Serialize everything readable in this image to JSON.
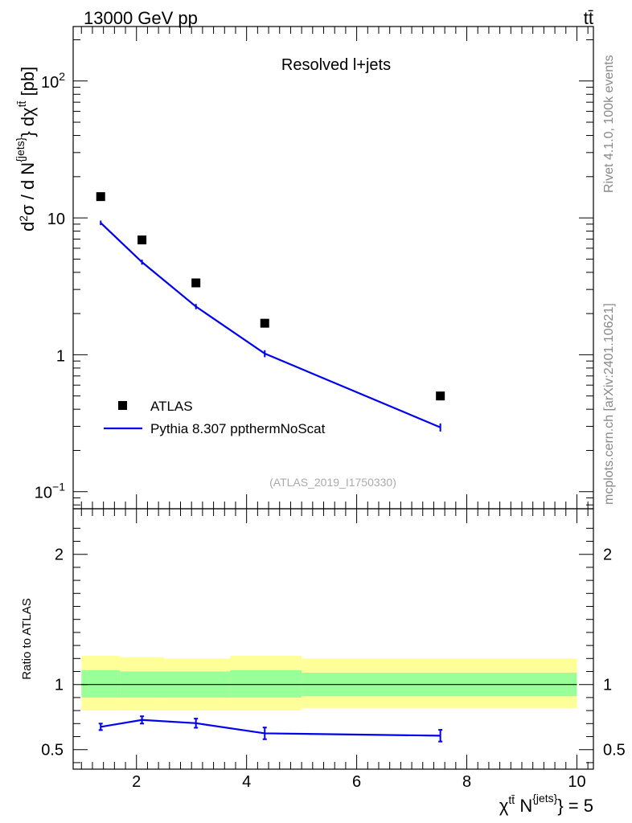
{
  "header": {
    "left_label": "13000 GeV pp",
    "right_label": "tt̄"
  },
  "side_labels": {
    "rivet": "Rivet 4.1.0,  100k events",
    "mcplots": "mcplots.cern.ch [arXiv:2401.10621]"
  },
  "chart_data": [
    {
      "type": "scatter",
      "panel": "main",
      "title": "Resolved l+jets",
      "analysis_tag": "(ATLAS_2019_I1750330)",
      "ylabel": {
        "prefix": "d",
        "sup1": "2",
        "mid": "σ /  d N",
        "sup2": "{jets}",
        "mid2": "} dχ",
        "sup3": "tt̄",
        "unit": " [pb]"
      },
      "yscale": "log",
      "ylim": [
        0.075,
        250
      ],
      "xlim": [
        0.85,
        10.3
      ],
      "yticks": [
        {
          "value": 0.1,
          "base": "10",
          "exp": "−1"
        },
        {
          "value": 1,
          "base": "1",
          "exp": ""
        },
        {
          "value": 10,
          "base": "10",
          "exp": ""
        },
        {
          "value": 100,
          "base": "10",
          "exp": "2"
        }
      ],
      "series": [
        {
          "name": "ATLAS",
          "style": "markers",
          "color": "#000000",
          "x": [
            1.35,
            2.1,
            3.08,
            4.33,
            7.52
          ],
          "y": [
            14.3,
            6.9,
            3.35,
            1.7,
            0.5
          ]
        },
        {
          "name": "Pythia 8.307 ppthermNoScat",
          "style": "line",
          "color": "#0000ee",
          "x": [
            1.35,
            2.1,
            3.08,
            4.33,
            7.52
          ],
          "y": [
            9.2,
            4.75,
            2.25,
            1.02,
            0.295
          ],
          "yerr": [
            0.35,
            0.2,
            0.1,
            0.06,
            0.02
          ]
        }
      ],
      "legend": "bottom-left"
    },
    {
      "type": "line",
      "panel": "ratio",
      "ylabel": "Ratio to ATLAS",
      "ylim": [
        0.35,
        2.35
      ],
      "xlim": [
        0.85,
        10.3
      ],
      "yticks": [
        {
          "value": 0.5,
          "label": "0.5"
        },
        {
          "value": 1,
          "label": "1"
        },
        {
          "value": 2,
          "label": "2"
        }
      ],
      "xticks": [
        {
          "value": 2,
          "label": "2"
        },
        {
          "value": 4,
          "label": "4"
        },
        {
          "value": 6,
          "label": "6"
        },
        {
          "value": 8,
          "label": "8"
        },
        {
          "value": 10,
          "label": "10"
        }
      ],
      "xlabel": {
        "chi": "χ",
        "sup1": "tt̄",
        "n": " N",
        "sup2": "{jets}",
        "tail": "} = 5"
      },
      "bands": [
        {
          "x0": 1.0,
          "x1": 1.7,
          "yellow": [
            0.8,
            1.22
          ],
          "green": [
            0.9,
            1.11
          ]
        },
        {
          "x0": 1.7,
          "x1": 2.5,
          "yellow": [
            0.8,
            1.21
          ],
          "green": [
            0.9,
            1.1
          ]
        },
        {
          "x0": 2.5,
          "x1": 3.7,
          "yellow": [
            0.8,
            1.2
          ],
          "green": [
            0.9,
            1.1
          ]
        },
        {
          "x0": 3.7,
          "x1": 5.0,
          "yellow": [
            0.8,
            1.22
          ],
          "green": [
            0.9,
            1.11
          ]
        },
        {
          "x0": 5.0,
          "x1": 10.0,
          "yellow": [
            0.82,
            1.2
          ],
          "green": [
            0.91,
            1.09
          ]
        }
      ],
      "series": [
        {
          "name": "Pythia 8.307 ppthermNoScat / ATLAS",
          "color": "#0000ee",
          "x": [
            1.35,
            2.1,
            3.08,
            4.33,
            7.52
          ],
          "y": [
            0.675,
            0.728,
            0.703,
            0.625,
            0.607
          ],
          "yerr": [
            0.025,
            0.028,
            0.035,
            0.045,
            0.045
          ]
        }
      ]
    }
  ]
}
